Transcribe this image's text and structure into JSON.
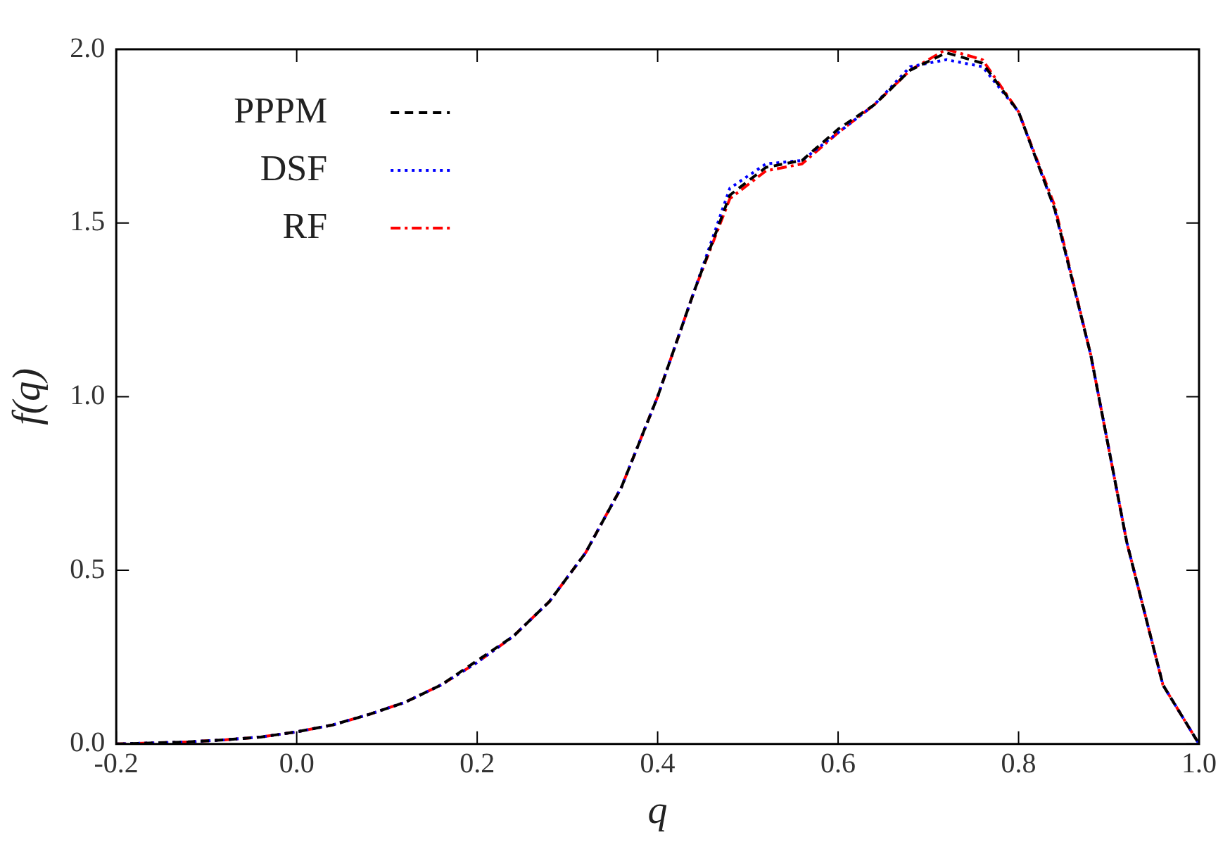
{
  "chart_data": {
    "type": "line",
    "xlabel": "q",
    "ylabel": "f(q)",
    "x": [
      -0.2,
      -0.16,
      -0.12,
      -0.08,
      -0.04,
      0.0,
      0.04,
      0.08,
      0.12,
      0.16,
      0.2,
      0.24,
      0.28,
      0.32,
      0.36,
      0.4,
      0.44,
      0.48,
      0.52,
      0.56,
      0.6,
      0.64,
      0.68,
      0.72,
      0.76,
      0.8,
      0.84,
      0.88,
      0.92,
      0.96,
      1.0
    ],
    "series": [
      {
        "name": "PPPM",
        "color": "#000000",
        "line_style": "dashed",
        "values": [
          0.0,
          0.003,
          0.006,
          0.012,
          0.02,
          0.035,
          0.055,
          0.085,
          0.12,
          0.17,
          0.24,
          0.31,
          0.41,
          0.55,
          0.74,
          1.0,
          1.3,
          1.58,
          1.66,
          1.68,
          1.77,
          1.84,
          1.94,
          1.99,
          1.96,
          1.82,
          1.54,
          1.12,
          0.58,
          0.17,
          0.0
        ]
      },
      {
        "name": "DSF",
        "color": "#0000ff",
        "line_style": "dotted",
        "values": [
          0.0,
          0.003,
          0.006,
          0.012,
          0.02,
          0.035,
          0.055,
          0.085,
          0.12,
          0.17,
          0.235,
          0.31,
          0.41,
          0.55,
          0.74,
          1.0,
          1.3,
          1.6,
          1.67,
          1.68,
          1.76,
          1.84,
          1.95,
          1.97,
          1.95,
          1.82,
          1.54,
          1.12,
          0.58,
          0.17,
          0.0
        ]
      },
      {
        "name": "RF",
        "color": "#ff0000",
        "line_style": "dashdot",
        "values": [
          0.0,
          0.003,
          0.006,
          0.012,
          0.02,
          0.035,
          0.055,
          0.085,
          0.12,
          0.17,
          0.235,
          0.31,
          0.41,
          0.55,
          0.74,
          1.0,
          1.3,
          1.57,
          1.65,
          1.67,
          1.76,
          1.84,
          1.94,
          2.0,
          1.97,
          1.82,
          1.55,
          1.12,
          0.58,
          0.17,
          0.0
        ]
      }
    ],
    "xlim": [
      -0.2,
      1.0
    ],
    "xticks": [
      {
        "value": -0.2,
        "label": "-0.2"
      },
      {
        "value": 0,
        "label": "0.0"
      },
      0.2,
      0.4,
      0.6,
      0.8,
      {
        "value": 1,
        "label": "1.0"
      }
    ],
    "ylim": [
      0,
      2.0
    ],
    "yticks": [
      {
        "value": 0,
        "label": "0.0"
      },
      0.5,
      {
        "value": 1,
        "label": "1.0"
      },
      1.5,
      {
        "value": 2,
        "label": "2.0"
      }
    ],
    "grid": false,
    "legend": "top left",
    "marker": "none"
  }
}
